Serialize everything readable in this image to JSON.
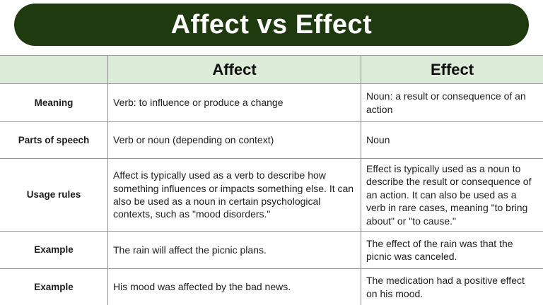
{
  "colors": {
    "banner_bg": "#1f3a0e",
    "banner_text": "#ffffff",
    "header_row_bg": "#ddecd8",
    "border": "#8c8c8c",
    "body_text": "#1d1d1d"
  },
  "banner": {
    "title": "Affect vs Effect"
  },
  "table": {
    "columns": [
      "",
      "Affect",
      "Effect"
    ],
    "rows": [
      {
        "label": "Meaning",
        "affect": "Verb: to influence or produce a change",
        "effect": "Noun: a result or consequence of an action"
      },
      {
        "label": "Parts of speech",
        "affect": "Verb or noun (depending on context)",
        "effect": "Noun"
      },
      {
        "label": "Usage rules",
        "affect": "Affect is typically used as a verb to describe how something influences or impacts something else. It can also be used as a noun in certain psychological contexts, such as \"mood disorders.\"",
        "effect": "Effect is typically used as a noun to describe the result or consequence of an action. It can also be used as a verb in rare cases, meaning \"to bring about\" or \"to cause.\""
      },
      {
        "label": "Example",
        "affect": "The rain will affect the picnic plans.",
        "effect": "The effect of the rain was that the picnic was canceled."
      },
      {
        "label": "Example",
        "affect": "His mood was affected by the bad news.",
        "effect": "The medication had a positive effect on his mood."
      }
    ]
  }
}
